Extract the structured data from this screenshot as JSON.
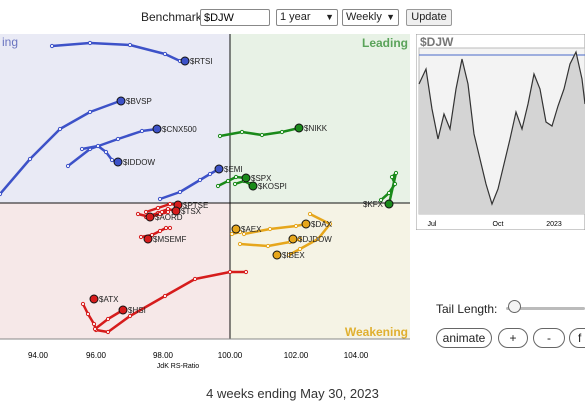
{
  "toolbar": {
    "benchmark_label": "Benchmark:",
    "benchmark_value": "$DJW",
    "period_value": "1 year",
    "interval_value": "Weekly",
    "update_label": "Update"
  },
  "rrg": {
    "quadrants": {
      "leading": "Leading",
      "weakening": "Weakening",
      "improving_partial": "ing"
    },
    "x_ticks": [
      "94.00",
      "96.00",
      "98.00",
      "100.00",
      "102.00",
      "104.00"
    ],
    "x_axis_title": "JdK RS-Ratio",
    "colors": {
      "blue": "#3d52c8",
      "green": "#1a8a1a",
      "red": "#d61c1c",
      "orange": "#e6a61c",
      "leading_bg": "#e8f2e6",
      "improving_bg": "#e9eaf5",
      "lagging_bg": "#f6e8e8",
      "weakening_bg": "#f5f3e5"
    },
    "symbols": [
      {
        "label": "$RTSI",
        "color": "blue"
      },
      {
        "label": "$BVSP",
        "color": "blue"
      },
      {
        "label": "$CNX500",
        "color": "blue"
      },
      {
        "label": "$IDDOW",
        "color": "blue"
      },
      {
        "label": "$EMI",
        "color": "blue"
      },
      {
        "label": "$NIKK",
        "color": "green"
      },
      {
        "label": "$SPX",
        "color": "green"
      },
      {
        "label": "$KOSPI",
        "color": "green"
      },
      {
        "label": "$KFX",
        "color": "green"
      },
      {
        "label": "$PTSE",
        "color": "red"
      },
      {
        "label": "$TSX",
        "color": "red"
      },
      {
        "label": "$AORD",
        "color": "red"
      },
      {
        "label": "$MSEMF",
        "color": "red"
      },
      {
        "label": "$ATX",
        "color": "red"
      },
      {
        "label": "$HSI",
        "color": "red"
      },
      {
        "label": "$DAX",
        "color": "orange"
      },
      {
        "label": "$DJDOW",
        "color": "orange"
      },
      {
        "label": "$AEX",
        "color": "orange"
      },
      {
        "label": "$IBEX",
        "color": "orange"
      }
    ]
  },
  "mini_chart": {
    "title": "$DJW",
    "x_labels": [
      "Jul",
      "Oct",
      "2023"
    ],
    "fill_color": "#d4d4d4",
    "line_color": "#333333",
    "ref_line_color": "#4a68c8"
  },
  "controls": {
    "tail_length_label": "Tail Length:",
    "animate_label": "animate",
    "plus_label": "+",
    "minus_label": "-",
    "f_label": "f"
  },
  "footer": {
    "text": "4 weeks ending May 30, 2023"
  }
}
